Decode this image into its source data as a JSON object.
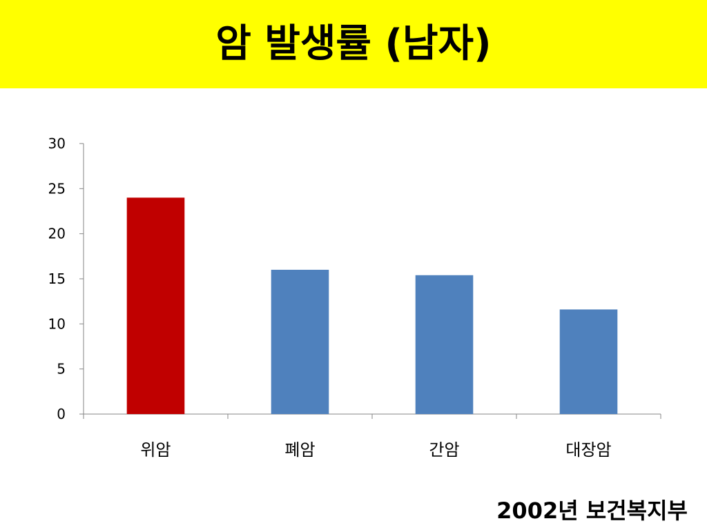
{
  "slide": {
    "title": "암 발생률 (남자)",
    "source": "2002년 보건복지부"
  },
  "chart_data": {
    "type": "bar",
    "title": "",
    "xlabel": "",
    "ylabel": "",
    "categories": [
      "위암",
      "폐암",
      "간암",
      "대장암"
    ],
    "values": [
      24,
      16,
      15.4,
      11.6
    ],
    "ylim": [
      0,
      30
    ],
    "yticks": [
      0,
      5,
      10,
      15,
      20,
      25,
      30
    ],
    "grid": false,
    "legend": "none",
    "bar_colors": [
      "#c00000",
      "#4f81bd",
      "#4f81bd",
      "#4f81bd"
    ],
    "axis_color": "#868686"
  }
}
